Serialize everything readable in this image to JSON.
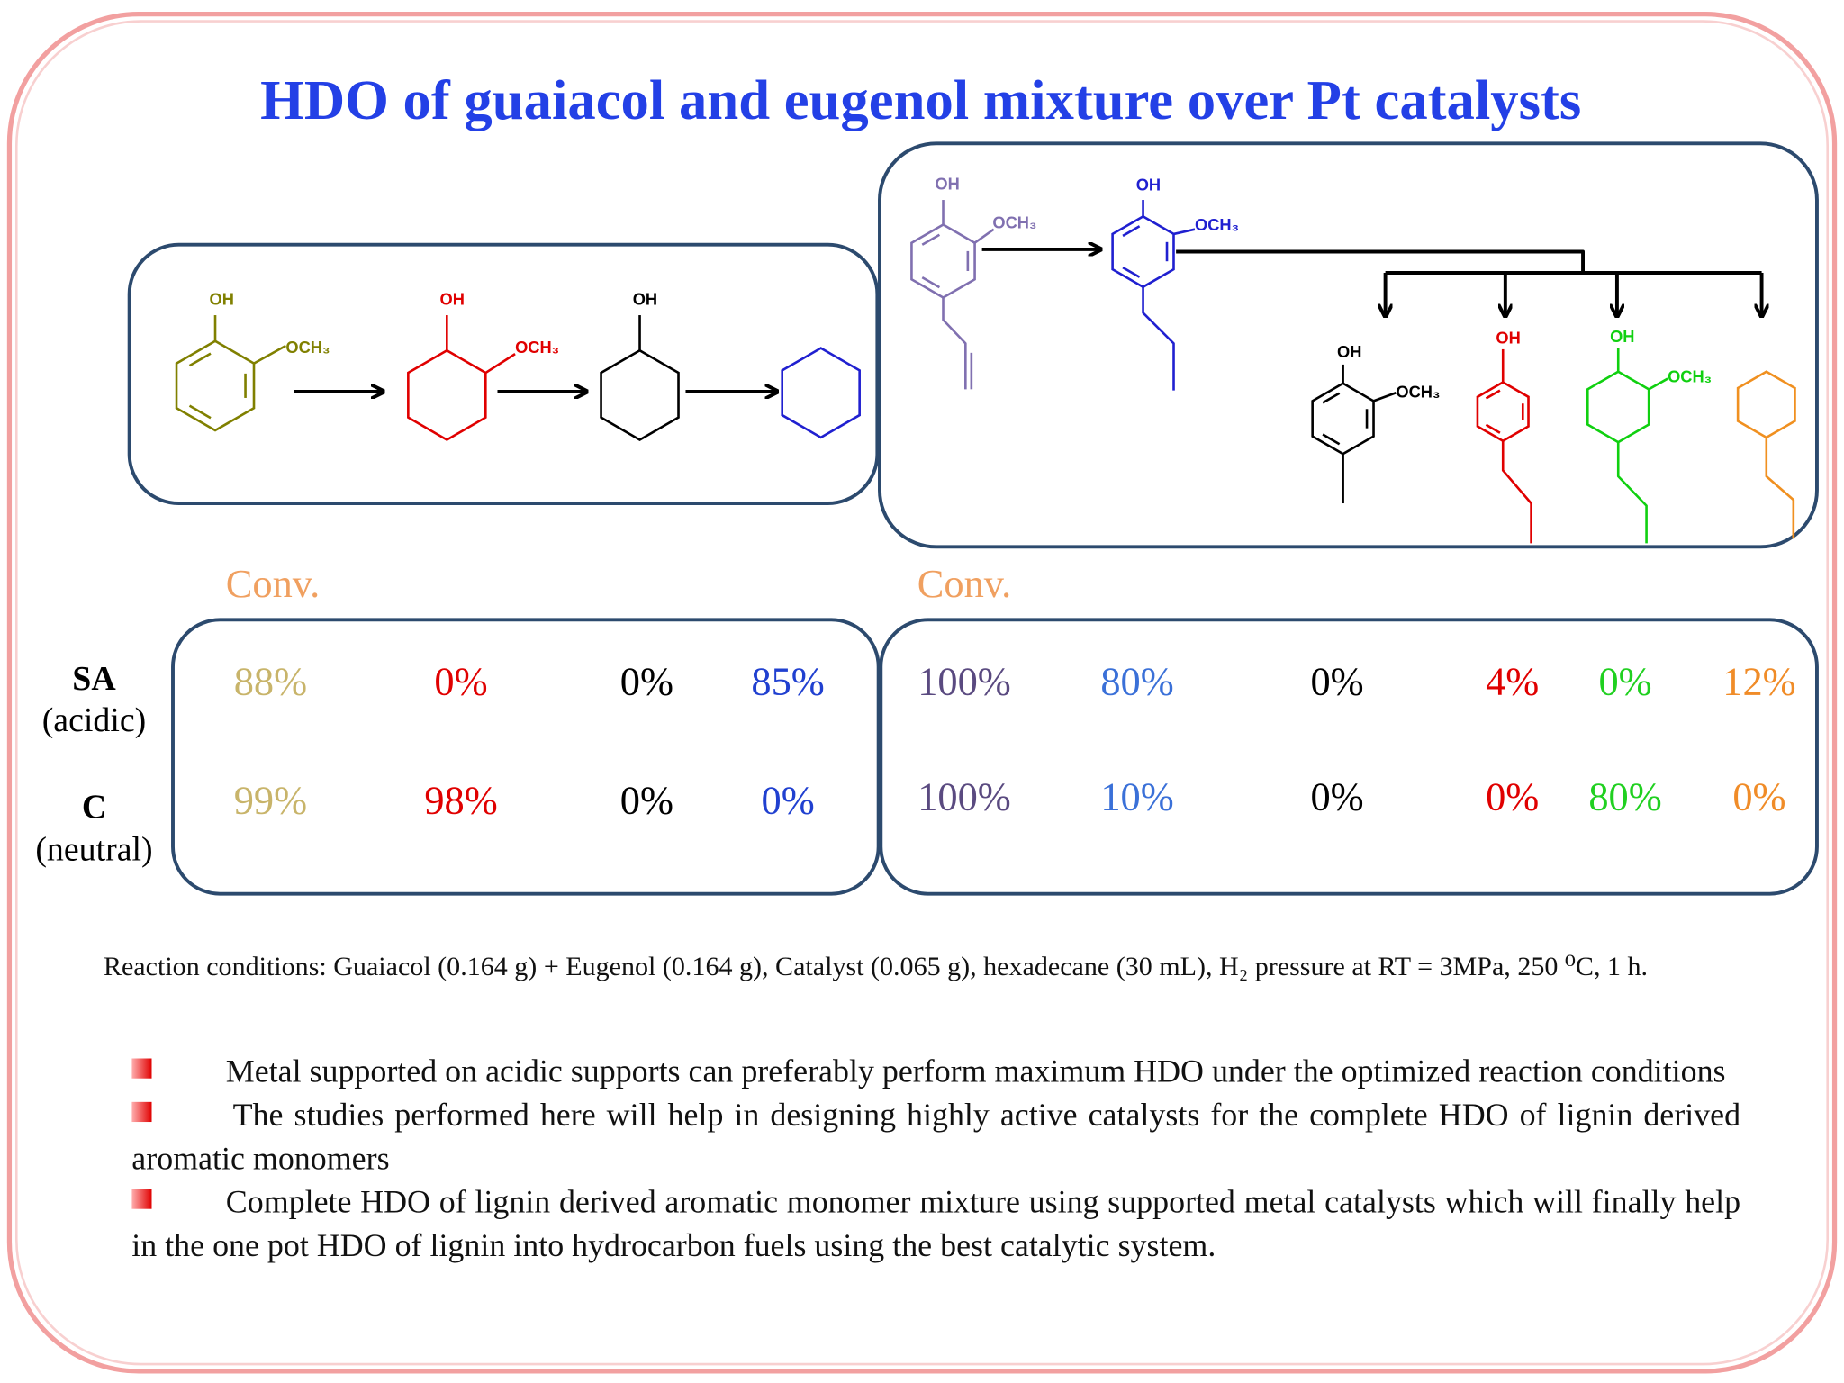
{
  "title": "HDO of guaiacol and eugenol mixture over Pt catalysts",
  "guaiacol_scheme": [
    [
      "OH",
      "OCH₃"
    ],
    [
      "OH",
      "OCH₃"
    ],
    [
      "OH"
    ]
  ],
  "eugenol_scheme": [
    [
      "OH",
      "OCH₃"
    ],
    [
      "OH",
      "OCH₃"
    ],
    [
      "OH",
      "OCH₃"
    ],
    [
      "OH"
    ],
    [
      "OH",
      "OCH₃"
    ]
  ],
  "conv_label": "Conv.",
  "catalysts": [
    {
      "name": "SA",
      "support": "(acidic)"
    },
    {
      "name": "C",
      "support": "(neutral)"
    }
  ],
  "guaiacol_results": [
    [
      "88%",
      "0%",
      "0%",
      "85%"
    ],
    [
      "99%",
      "98%",
      "0%",
      "0%"
    ]
  ],
  "eugenol_results": [
    [
      "100%",
      "80%",
      "0%",
      "4%",
      "0%",
      "12%"
    ],
    [
      "100%",
      "10%",
      "0%",
      "0%",
      "80%",
      "0%"
    ]
  ],
  "conditions": "Reaction conditions: Guaiacol (0.164 g) + Eugenol (0.164 g), Catalyst (0.065 g), hexadecane (30 mL), H₂ pressure at RT = 3MPa, 250 ⁰C, 1 h.",
  "bullets": [
    "Metal supported on acidic supports can preferably perform maximum HDO under the optimized reaction conditions",
    "The studies performed here will help in designing highly active catalysts for the complete HDO of lignin derived aromatic monomers",
    "Complete HDO of lignin derived aromatic monomer mixture using supported metal catalysts which will finally help in the one pot HDO of lignin into hydrocarbon fuels using the best catalytic system."
  ]
}
